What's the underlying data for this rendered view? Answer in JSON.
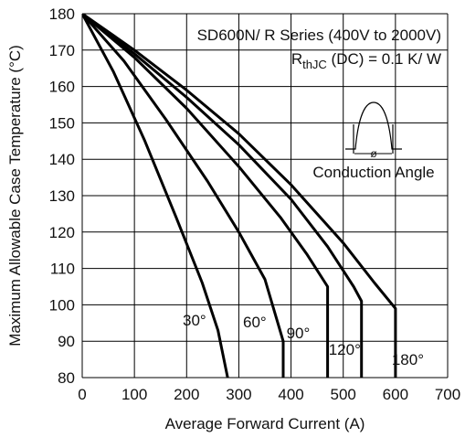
{
  "chart_data": {
    "type": "line",
    "xlabel": "Average Forward Current (A)",
    "ylabel": "Maximum Allowable Case Temperature (°C)",
    "xlim": [
      0,
      700
    ],
    "ylim": [
      80,
      180
    ],
    "x_ticks": [
      "0",
      "100",
      "200",
      "300",
      "400",
      "500",
      "600",
      "700"
    ],
    "y_ticks": [
      "80",
      "90",
      "100",
      "110",
      "120",
      "130",
      "140",
      "150",
      "160",
      "170",
      "180"
    ],
    "grid": true,
    "annotations": {
      "series_line": "SD600N/ R Series (400V to 2000V)",
      "rth_main": "R",
      "rth_sub": "thJC",
      "rth_rest": " (DC) = 0.1 K/ W",
      "symbol": "ø",
      "inset_caption": "Conduction Angle"
    },
    "series": [
      {
        "name": "30°",
        "x": [
          0,
          60,
          120,
          180,
          230,
          260,
          280,
          280
        ],
        "y": [
          180,
          164,
          145,
          124,
          106,
          93,
          79,
          77
        ]
      },
      {
        "name": "60°",
        "x": [
          0,
          80,
          160,
          240,
          300,
          350,
          385,
          385
        ],
        "y": [
          180,
          167,
          151,
          134,
          120,
          107,
          90,
          77
        ]
      },
      {
        "name": "90°",
        "x": [
          0,
          100,
          200,
          300,
          380,
          430,
          470,
          470
        ],
        "y": [
          180,
          168,
          154,
          138,
          124,
          114,
          105,
          77
        ]
      },
      {
        "name": "120°",
        "x": [
          0,
          100,
          200,
          300,
          400,
          470,
          520,
          535,
          535
        ],
        "y": [
          180,
          169,
          157,
          144,
          129,
          116,
          105,
          101,
          77
        ]
      },
      {
        "name": "180°",
        "x": [
          0,
          100,
          200,
          300,
          400,
          500,
          560,
          600,
          600
        ],
        "y": [
          180,
          170,
          159,
          147,
          133,
          117,
          106,
          99,
          77
        ]
      }
    ]
  }
}
